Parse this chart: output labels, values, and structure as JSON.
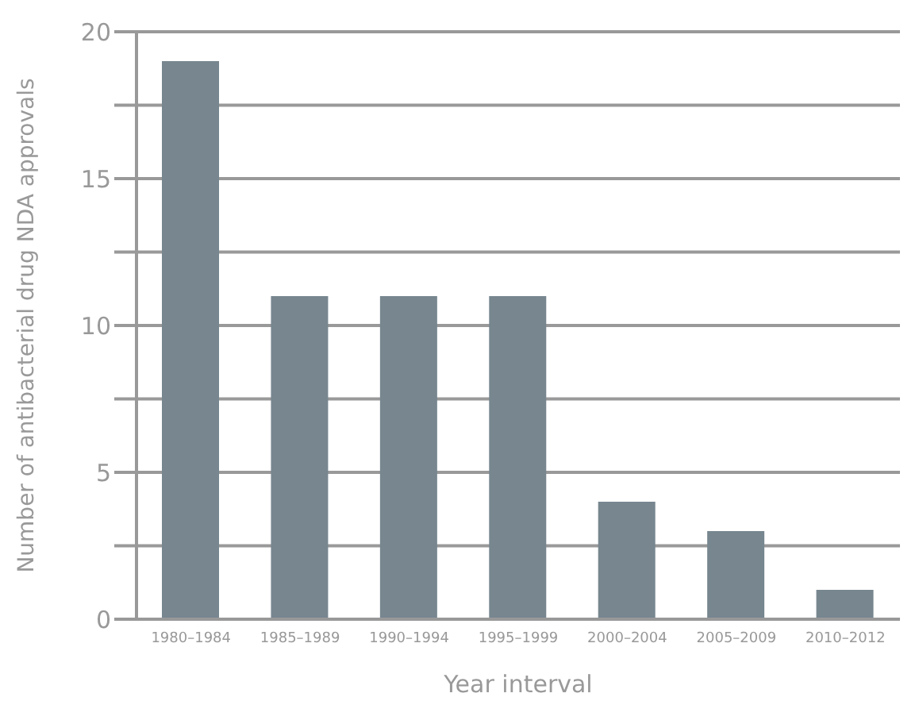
{
  "chart_data": {
    "type": "bar",
    "xlabel": "Year interval",
    "ylabel": "Number of antibacterial drug NDA approvals",
    "categories": [
      "1980–1984",
      "1985–1989",
      "1990–1994",
      "1995–1999",
      "2000–2004",
      "2005–2009",
      "2010–2012"
    ],
    "values": [
      19,
      11,
      11,
      11,
      4,
      3,
      1
    ],
    "color": "#77868f",
    "ylim": [
      0,
      20
    ],
    "yticks": [
      0,
      {
        "value": 2.5,
        "label": null
      },
      5,
      {
        "value": 7.5,
        "label": null
      },
      10,
      {
        "value": 12.5,
        "label": null
      },
      15,
      {
        "value": 17.5,
        "label": null
      },
      20
    ],
    "grid": "y"
  }
}
